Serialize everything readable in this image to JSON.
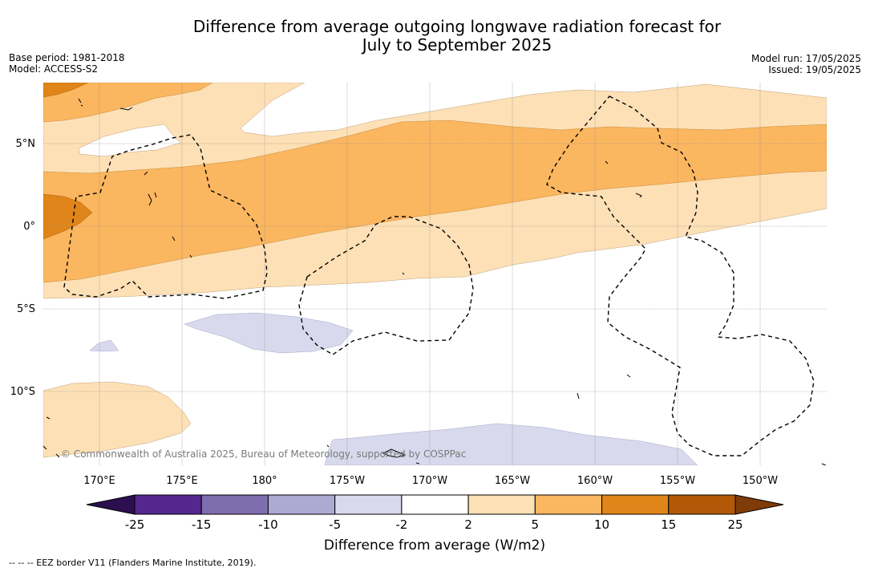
{
  "title": {
    "line1": "Difference from average outgoing longwave radiation forecast for",
    "line2": "July to September 2025"
  },
  "meta": {
    "base_period": "Base period: 1981-2018",
    "model": "Model: ACCESS-S2",
    "model_run": "Model run: 17/05/2025",
    "issued": "Issued: 19/05/2025"
  },
  "map": {
    "lat_labels": [
      "5°N",
      "0°",
      "5°S",
      "10°S"
    ],
    "lon_labels": [
      "170°E",
      "175°E",
      "180°",
      "175°W",
      "170°W",
      "165°W",
      "160°W",
      "155°W",
      "150°W"
    ],
    "copyright": "© Commonwealth of Australia 2025, Bureau of Meteorology, supported by COSPPac",
    "colors": {
      "very_light_orange": "#fde0b6",
      "light_orange": "#fbb660",
      "orange": "#e08519",
      "light_lavender": "#d8d9ec",
      "eez_border": "#000000"
    }
  },
  "colorbar": {
    "label": "Difference from average (W/m2)",
    "ticks": [
      "-25",
      "-15",
      "-10",
      "-5",
      "-2",
      "2",
      "5",
      "10",
      "15",
      "25"
    ],
    "colors": [
      "#2b0f4f",
      "#54278f",
      "#7f6eaf",
      "#aea9d2",
      "#d8d9ec",
      "#ffffff",
      "#fde0b6",
      "#fbb660",
      "#e08519",
      "#b35806",
      "#7f3b08"
    ]
  },
  "footnote": "--  --  -- EEZ border V11 (Flanders Marine Institute, 2019)."
}
